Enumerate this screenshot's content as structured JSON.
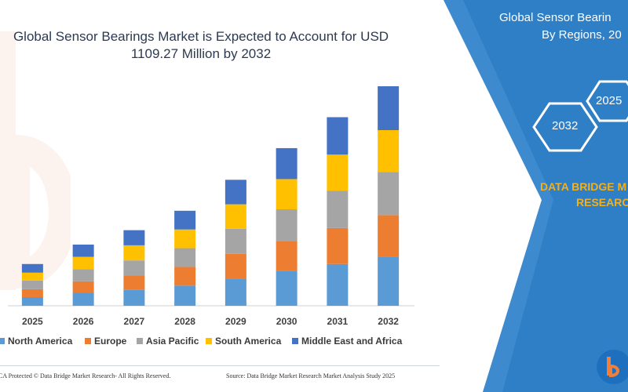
{
  "title": "Global Sensor Bearings Market is Expected to Account for USD 1109.27 Million by 2032",
  "title_lines": [
    "Global Sensor Bearings Market is Expected to Account for USD",
    "1109.27 Million by 2032"
  ],
  "side_panel": {
    "title_line1": "Global Sensor Bearin",
    "title_line2": "By Regions, 20",
    "hex_2025": "2025",
    "hex_2032": "2032",
    "brand_line1": "DATA BRIDGE M",
    "brand_line2": "RESEARC"
  },
  "footer": {
    "copyright": "CA Protected © Data Bridge Market Research- All Rights Reserved.",
    "source": "Source: Data Bridge Market Research Market Analysis Study 2025"
  },
  "colors": {
    "north_america": "#5b9bd5",
    "europe": "#ed7d31",
    "asia_pacific": "#a5a5a5",
    "south_america": "#ffc000",
    "middle_east_africa": "#4472c4",
    "panel_blue": "#2f7fc6",
    "brand_orange": "#f2b01e"
  },
  "chart_data": {
    "type": "bar",
    "stacked": true,
    "categories": [
      "2025",
      "2026",
      "2027",
      "2028",
      "2029",
      "2030",
      "2031",
      "2032"
    ],
    "series": [
      {
        "name": "North America",
        "color": "#5b9bd5",
        "values": [
          12,
          18,
          22,
          28,
          38,
          48,
          58,
          68
        ]
      },
      {
        "name": "Europe",
        "color": "#ed7d31",
        "values": [
          11,
          16,
          20,
          26,
          34,
          42,
          50,
          58
        ]
      },
      {
        "name": "Asia Pacific",
        "color": "#a5a5a5",
        "values": [
          12,
          17,
          21,
          26,
          35,
          44,
          52,
          60
        ]
      },
      {
        "name": "South America",
        "color": "#ffc000",
        "values": [
          11,
          17,
          21,
          26,
          34,
          42,
          50,
          58
        ]
      },
      {
        "name": "Middle East and Africa",
        "color": "#4472c4",
        "values": [
          12,
          17,
          21,
          26,
          34,
          43,
          52,
          61
        ]
      }
    ],
    "ylim": [
      0,
      305
    ],
    "legend_position": "bottom",
    "grid": false
  }
}
